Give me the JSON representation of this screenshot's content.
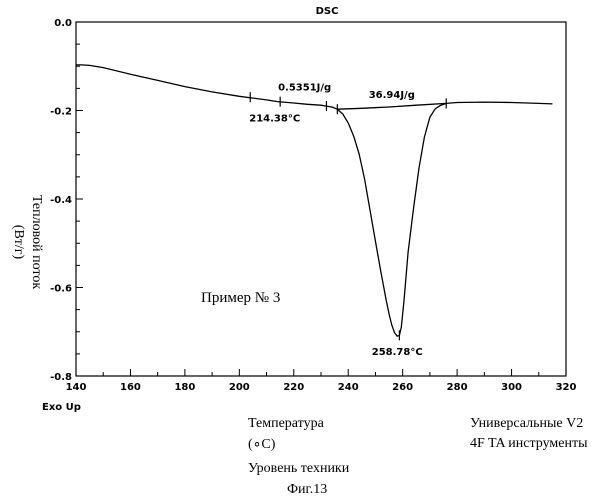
{
  "chart_data": {
    "type": "line",
    "title": "DSC",
    "xlabel": "Температура",
    "xunit": "(∘C)",
    "ylabel": "Тепловой поток",
    "yunit": "(Вт/г)",
    "xlim": [
      140,
      320
    ],
    "ylim": [
      -0.8,
      0.0
    ],
    "xticks": [
      140,
      160,
      180,
      200,
      220,
      240,
      260,
      280,
      300,
      320
    ],
    "yticks": [
      0.0,
      -0.2,
      -0.4,
      -0.6,
      -0.8
    ],
    "xtick_labels": [
      "140",
      "160",
      "180",
      "200",
      "220",
      "240",
      "260",
      "280",
      "300",
      "320"
    ],
    "ytick_labels": [
      "0.0",
      "-0.2",
      "-0.4",
      "-0.6",
      "-0.8"
    ],
    "grid": false,
    "series": [
      {
        "x": [
          140,
          142,
          145,
          150,
          160,
          170,
          180,
          190,
          200,
          205,
          210,
          214,
          220,
          225,
          230,
          232,
          234,
          236,
          238,
          240,
          242,
          244,
          246,
          248,
          250,
          252,
          254,
          255,
          256,
          257,
          258,
          258.8,
          259.5,
          260.5,
          262,
          264,
          266,
          268,
          270,
          272,
          274,
          276,
          280,
          290,
          300,
          310,
          315
        ],
        "y": [
          -0.097,
          -0.097,
          -0.098,
          -0.103,
          -0.118,
          -0.132,
          -0.146,
          -0.158,
          -0.168,
          -0.172,
          -0.176,
          -0.18,
          -0.183,
          -0.186,
          -0.188,
          -0.19,
          -0.192,
          -0.197,
          -0.208,
          -0.228,
          -0.258,
          -0.298,
          -0.355,
          -0.425,
          -0.495,
          -0.565,
          -0.63,
          -0.66,
          -0.685,
          -0.702,
          -0.71,
          -0.708,
          -0.69,
          -0.63,
          -0.52,
          -0.42,
          -0.33,
          -0.26,
          -0.215,
          -0.196,
          -0.188,
          -0.184,
          -0.182,
          -0.181,
          -0.182,
          -0.184,
          -0.185
        ]
      },
      {
        "x": [
          236,
          245,
          255,
          265,
          276
        ],
        "y": [
          -0.197,
          -0.195,
          -0.192,
          -0.188,
          -0.184
        ]
      }
    ],
    "markers": [
      {
        "x": 204,
        "y": -0.17
      },
      {
        "x": 215,
        "y": -0.18
      },
      {
        "x": 232,
        "y": -0.19
      },
      {
        "x": 236,
        "y": -0.197
      },
      {
        "x": 276,
        "y": -0.184
      },
      {
        "x": 258.8,
        "y": -0.708
      }
    ],
    "annotations": [
      {
        "text": "0.5351J/g",
        "x": 224,
        "y": -0.155
      },
      {
        "text": "214.38°C",
        "x": 213,
        "y": -0.225
      },
      {
        "text": "36.94J/g",
        "x": 256,
        "y": -0.172
      },
      {
        "text": "258.78°C",
        "x": 258,
        "y": -0.753
      }
    ],
    "exo_label": "Exo Up"
  },
  "texts": {
    "example": "Пример № 3",
    "instrument_line1": "Универсальные V2",
    "instrument_line2": "4F TA инструменты",
    "prior_art": "Уровень техники",
    "figure": "Фиг.13"
  },
  "colors": {
    "line": "#000000",
    "background": "#ffffff"
  }
}
